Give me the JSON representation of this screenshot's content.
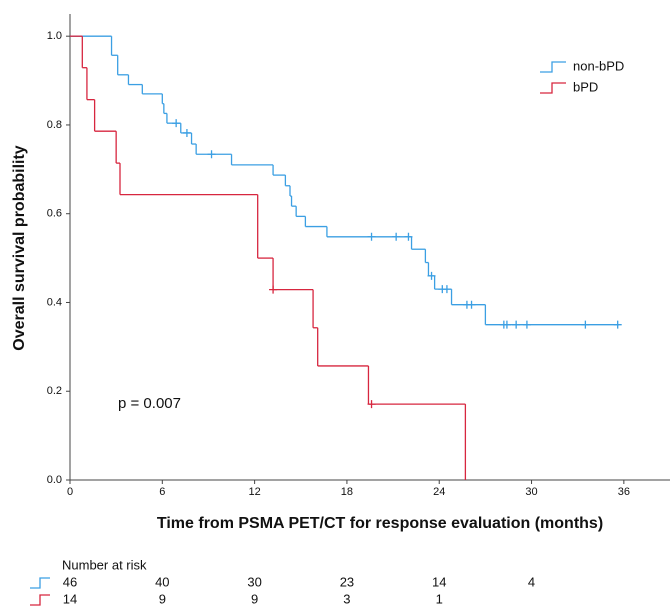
{
  "chart_data": {
    "type": "kaplan-meier",
    "xlabel": "Time from PSMA PET/CT for response evaluation (months)",
    "ylabel": "Overall survival probability",
    "xlim": [
      0,
      39
    ],
    "ylim": [
      0,
      1.05
    ],
    "xticks": [
      0,
      6,
      12,
      18,
      24,
      30,
      36
    ],
    "yticks": [
      {
        "value": 0,
        "label": "0.0"
      },
      0.2,
      0.4,
      0.6,
      0.8,
      {
        "value": 1,
        "label": "1.0"
      }
    ],
    "grid": false,
    "legend": "upper right",
    "annotation": "p = 0.007",
    "series": [
      {
        "name": "non-bPD",
        "color": "#3b9fe3",
        "x": [
          0,
          2.7,
          3.1,
          3.8,
          4.7,
          6.0,
          6.1,
          6.3,
          7.2,
          7.9,
          8.2,
          10.5,
          13.2,
          14.0,
          14.3,
          14.4,
          14.7,
          15.3,
          16.7,
          22.2,
          23.1,
          23.3,
          23.7,
          24.8,
          27.0,
          35.7
        ],
        "values": [
          1.0,
          0.957,
          0.913,
          0.891,
          0.87,
          0.848,
          0.826,
          0.804,
          0.782,
          0.757,
          0.734,
          0.71,
          0.687,
          0.663,
          0.64,
          0.617,
          0.594,
          0.571,
          0.548,
          0.52,
          0.49,
          0.46,
          0.43,
          0.395,
          0.35,
          0.35
        ],
        "censor_x": [
          6.9,
          7.6,
          9.2,
          19.6,
          21.2,
          22.0,
          23.5,
          24.2,
          24.5,
          25.8,
          26.1,
          28.2,
          28.4,
          29.0,
          29.7,
          33.5,
          35.6
        ],
        "censor_values": [
          0.804,
          0.782,
          0.734,
          0.548,
          0.548,
          0.548,
          0.46,
          0.43,
          0.43,
          0.395,
          0.395,
          0.35,
          0.35,
          0.35,
          0.35,
          0.35,
          0.35
        ]
      },
      {
        "name": "bPD",
        "color": "#d7263f",
        "x": [
          0,
          0.8,
          1.1,
          1.6,
          3.0,
          3.25,
          12.2,
          13.2,
          15.8,
          16.1,
          19.4,
          25.7
        ],
        "values": [
          1.0,
          0.929,
          0.857,
          0.786,
          0.714,
          0.643,
          0.5,
          0.429,
          0.343,
          0.257,
          0.171,
          0.0
        ],
        "censor_x": [
          13.2,
          19.6
        ],
        "censor_values": [
          0.429,
          0.171
        ]
      }
    ],
    "risk_table": {
      "title": "Number at risk",
      "rows": [
        [
          46,
          40,
          30,
          23,
          14,
          4
        ],
        [
          14,
          9,
          9,
          3,
          1
        ]
      ]
    }
  }
}
